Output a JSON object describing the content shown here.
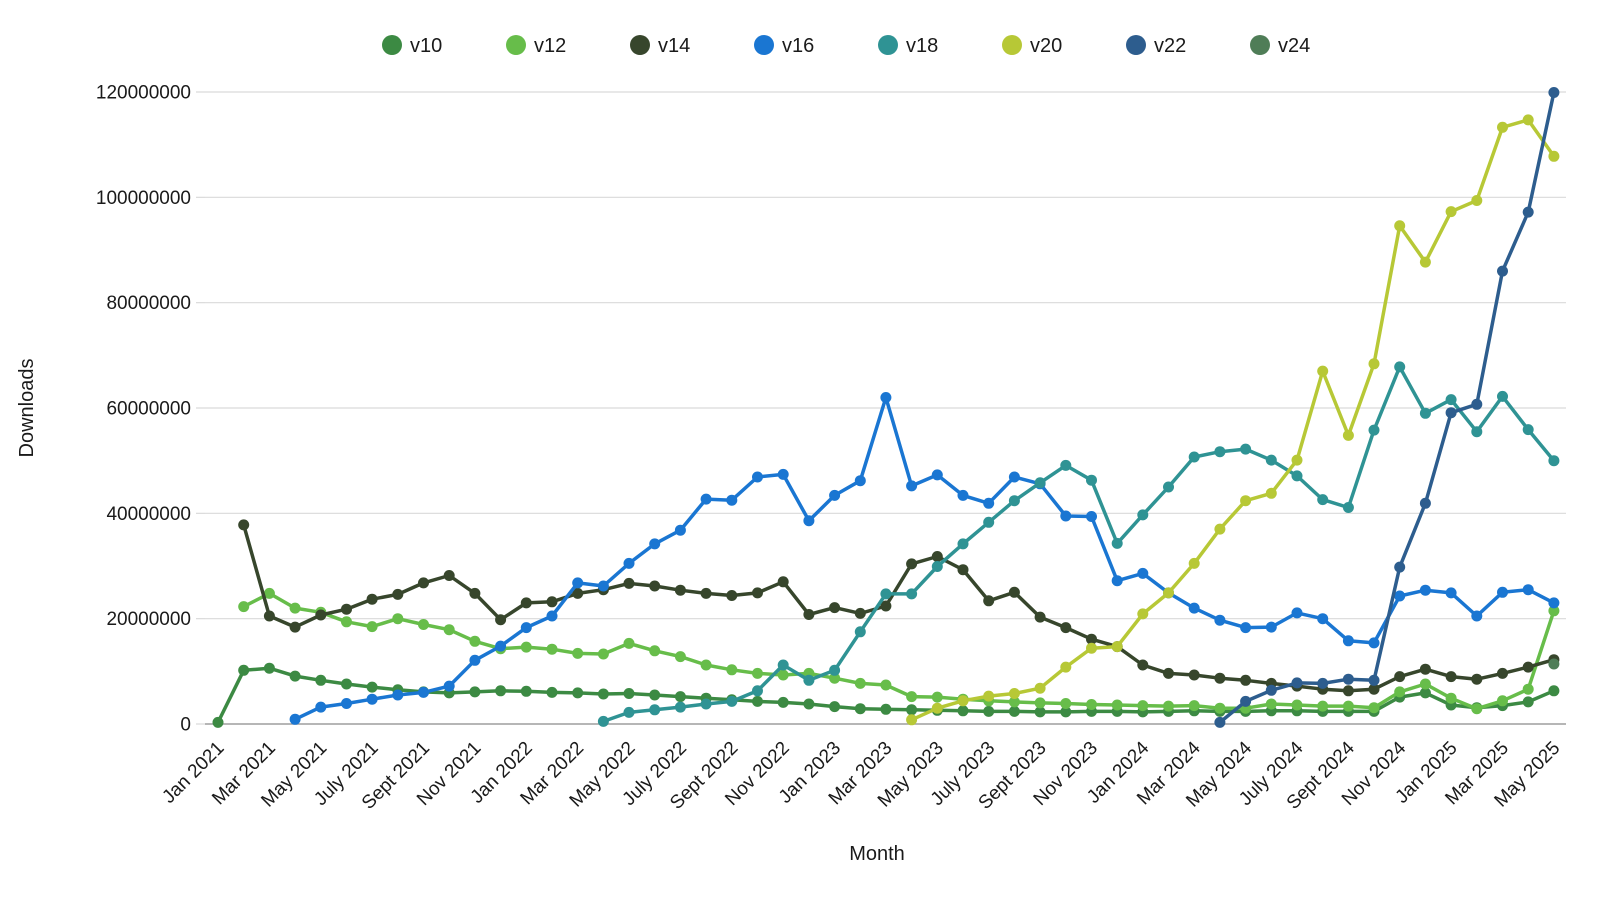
{
  "colors": {
    "background": "#ffffff",
    "gridline": "#d9d9d9",
    "axis_line": "#9e9e9e",
    "text": "#1a1a1a"
  },
  "chart_data": {
    "type": "line",
    "title": "",
    "xlabel": "Month",
    "ylabel": "Downloads",
    "units": "millions of downloads",
    "grid": true,
    "legend_position": "top",
    "marker": "circle",
    "ylim_millions": [
      0,
      120
    ],
    "y_tick_step_millions": 20,
    "y_tick_labels": [
      "0",
      "20000000",
      "40000000",
      "60000000",
      "80000000",
      "100000000",
      "120000000"
    ],
    "x_tick_every": 2,
    "x": [
      "Jan 2021",
      "Feb 2021",
      "Mar 2021",
      "Apr 2021",
      "May 2021",
      "June 2021",
      "July 2021",
      "Aug 2021",
      "Sept 2021",
      "Oct 2021",
      "Nov 2021",
      "Dec 2021",
      "Jan 2022",
      "Feb 2022",
      "Mar 2022",
      "Apr 2022",
      "May 2022",
      "June 2022",
      "July 2022",
      "Aug 2022",
      "Sept 2022",
      "Oct 2022",
      "Nov 2022",
      "Dec 2022",
      "Jan 2023",
      "Feb 2023",
      "Mar 2023",
      "Apr 2023",
      "May 2023",
      "June 2023",
      "July 2023",
      "Aug 2023",
      "Sept 2023",
      "Oct 2023",
      "Nov 2023",
      "Dec 2023",
      "Jan 2024",
      "Feb 2024",
      "Mar 2024",
      "Apr 2024",
      "May 2024",
      "June 2024",
      "July 2024",
      "Aug 2024",
      "Sept 2024",
      "Oct 2024",
      "Nov 2024",
      "Dec 2024",
      "Jan 2025",
      "Feb 2025",
      "Mar 2025",
      "Apr 2025",
      "May 2025"
    ],
    "series": [
      {
        "name": "v10",
        "color": "#3c8a43",
        "values_millions": [
          0.3,
          10.2,
          10.6,
          9.1,
          8.3,
          7.6,
          7.0,
          6.5,
          6.1,
          5.9,
          6.1,
          6.3,
          6.2,
          6.0,
          5.9,
          5.7,
          5.8,
          5.5,
          5.2,
          4.9,
          4.6,
          4.3,
          4.1,
          3.8,
          3.3,
          2.9,
          2.8,
          2.7,
          2.6,
          2.5,
          2.4,
          2.4,
          2.3,
          2.3,
          2.4,
          2.4,
          2.3,
          2.4,
          2.5,
          2.4,
          2.4,
          2.5,
          2.5,
          2.4,
          2.4,
          2.4,
          5.1,
          5.9,
          3.6,
          3.1,
          3.5,
          4.2,
          6.3
        ]
      },
      {
        "name": "v12",
        "color": "#67bd4a",
        "values_millions": [
          null,
          22.3,
          24.8,
          22.0,
          21.2,
          19.4,
          18.5,
          20.0,
          18.9,
          17.9,
          15.7,
          14.3,
          14.6,
          14.2,
          13.4,
          13.3,
          15.3,
          13.9,
          12.8,
          11.2,
          10.3,
          9.6,
          9.3,
          9.6,
          8.7,
          7.7,
          7.4,
          5.2,
          5.1,
          4.7,
          4.4,
          4.2,
          4.0,
          3.9,
          3.7,
          3.6,
          3.5,
          3.4,
          3.5,
          3.0,
          3.0,
          3.8,
          3.6,
          3.4,
          3.4,
          3.1,
          6.1,
          7.6,
          4.9,
          2.9,
          4.4,
          6.6,
          21.5
        ]
      },
      {
        "name": "v14",
        "color": "#37462c",
        "values_millions": [
          null,
          37.8,
          20.5,
          18.4,
          20.7,
          21.8,
          23.7,
          24.6,
          26.8,
          28.2,
          24.8,
          19.8,
          23.0,
          23.2,
          24.8,
          25.5,
          26.7,
          26.2,
          25.4,
          24.8,
          24.4,
          24.9,
          27.0,
          20.8,
          22.1,
          21.0,
          22.4,
          30.4,
          31.8,
          29.3,
          23.4,
          25.0,
          20.3,
          18.3,
          16.1,
          14.7,
          11.2,
          9.6,
          9.3,
          8.7,
          8.3,
          7.7,
          7.2,
          6.6,
          6.3,
          6.6,
          9.0,
          10.4,
          9.0,
          8.5,
          9.6,
          10.8,
          12.2
        ]
      },
      {
        "name": "v16",
        "color": "#1a76d2",
        "values_millions": [
          null,
          null,
          null,
          0.9,
          3.2,
          3.9,
          4.7,
          5.5,
          6.0,
          7.2,
          12.1,
          14.8,
          18.3,
          20.5,
          26.8,
          26.2,
          30.5,
          34.2,
          36.8,
          42.7,
          42.5,
          46.9,
          47.4,
          38.6,
          43.4,
          46.2,
          62.0,
          45.2,
          47.3,
          43.4,
          41.9,
          46.9,
          45.6,
          39.5,
          39.4,
          27.2,
          28.6,
          24.9,
          22.0,
          19.7,
          18.3,
          18.4,
          21.1,
          20.0,
          15.8,
          15.4,
          24.3,
          25.4,
          24.9,
          20.5,
          25.0,
          25.5,
          23.0
        ]
      },
      {
        "name": "v18",
        "color": "#2f9394",
        "values_millions": [
          null,
          null,
          null,
          null,
          null,
          null,
          null,
          null,
          null,
          null,
          null,
          null,
          null,
          null,
          null,
          0.5,
          2.2,
          2.7,
          3.2,
          3.8,
          4.3,
          6.3,
          11.2,
          8.3,
          10.2,
          17.5,
          24.7,
          24.7,
          29.9,
          34.2,
          38.3,
          42.4,
          45.8,
          49.1,
          46.3,
          34.3,
          39.7,
          45.0,
          50.7,
          51.7,
          52.2,
          50.1,
          47.1,
          42.6,
          41.1,
          55.8,
          67.8,
          59.0,
          61.6,
          55.5,
          62.2,
          55.9,
          50.0
        ]
      },
      {
        "name": "v20",
        "color": "#b7c836",
        "values_millions": [
          null,
          null,
          null,
          null,
          null,
          null,
          null,
          null,
          null,
          null,
          null,
          null,
          null,
          null,
          null,
          null,
          null,
          null,
          null,
          null,
          null,
          null,
          null,
          null,
          null,
          null,
          null,
          0.8,
          3.0,
          4.4,
          5.3,
          5.8,
          6.8,
          10.8,
          14.4,
          14.7,
          20.9,
          24.9,
          30.5,
          37.0,
          42.4,
          43.8,
          50.1,
          67.0,
          54.8,
          68.4,
          94.6,
          87.7,
          97.3,
          99.4,
          113.3,
          114.7,
          107.8
        ]
      },
      {
        "name": "v22",
        "color": "#2d5d8e",
        "values_millions": [
          null,
          null,
          null,
          null,
          null,
          null,
          null,
          null,
          null,
          null,
          null,
          null,
          null,
          null,
          null,
          null,
          null,
          null,
          null,
          null,
          null,
          null,
          null,
          null,
          null,
          null,
          null,
          null,
          null,
          null,
          null,
          null,
          null,
          null,
          null,
          null,
          null,
          null,
          null,
          0.3,
          4.3,
          6.4,
          7.8,
          7.7,
          8.5,
          8.3,
          29.8,
          41.9,
          59.1,
          60.7,
          86.0,
          97.2,
          119.9
        ]
      },
      {
        "name": "v24",
        "color": "#4f7d57",
        "values_millions": [
          null,
          null,
          null,
          null,
          null,
          null,
          null,
          null,
          null,
          null,
          null,
          null,
          null,
          null,
          null,
          null,
          null,
          null,
          null,
          null,
          null,
          null,
          null,
          null,
          null,
          null,
          null,
          null,
          null,
          null,
          null,
          null,
          null,
          null,
          null,
          null,
          null,
          null,
          null,
          null,
          null,
          null,
          null,
          null,
          null,
          null,
          null,
          null,
          null,
          null,
          null,
          null,
          11.4
        ]
      }
    ]
  }
}
